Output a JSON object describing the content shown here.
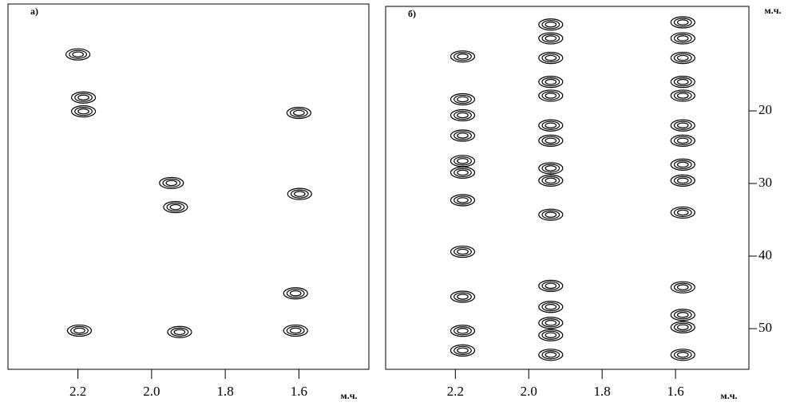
{
  "chart_data": [
    {
      "type": "contour",
      "panel_label": "а)",
      "xlabel": "м.ч.",
      "color": "#000000",
      "xlim": [
        2.39,
        1.41
      ],
      "ylim": [
        5.6,
        55.6
      ],
      "xticks": [
        2.2,
        {
          "value": 2.0,
          "label": "2.0"
        },
        1.8,
        1.6
      ],
      "x": [
        2.2,
        2.185,
        2.185,
        1.6,
        1.946,
        1.935,
        1.598,
        1.609,
        2.196,
        1.924,
        1.609
      ],
      "y": [
        12.5,
        18.4,
        20.3,
        20.5,
        30.1,
        33.4,
        31.6,
        45.2,
        50.3,
        50.5,
        50.3
      ]
    },
    {
      "type": "contour",
      "panel_label": "б)",
      "xlabel": "м.ч.",
      "ylabel": "м.ч.",
      "color": "#000000",
      "xlim": [
        2.39,
        1.4
      ],
      "ylim": [
        5.6,
        55.6
      ],
      "xticks": [
        2.2,
        {
          "value": 2.0,
          "label": "2.0"
        },
        1.8,
        1.6
      ],
      "yticks": [
        20,
        30,
        40,
        50
      ],
      "x": [
        2.18,
        2.18,
        2.18,
        2.18,
        2.18,
        2.18,
        2.18,
        2.18,
        2.18,
        2.18,
        2.18,
        1.94,
        1.94,
        1.94,
        1.94,
        1.94,
        1.94,
        1.94,
        1.94,
        1.94,
        1.94,
        1.94,
        1.94,
        1.94,
        1.94,
        1.94,
        1.58,
        1.58,
        1.58,
        1.58,
        1.58,
        1.58,
        1.58,
        1.58,
        1.58,
        1.58,
        1.58,
        1.58,
        1.58,
        1.58
      ],
      "y": [
        12.5,
        18.4,
        20.6,
        23.4,
        26.9,
        28.5,
        32.3,
        39.4,
        45.6,
        50.3,
        53.0,
        8.1,
        10.0,
        12.7,
        16.0,
        17.9,
        22.0,
        24.1,
        27.9,
        29.6,
        34.3,
        44.1,
        47.0,
        49.2,
        50.9,
        53.6,
        7.8,
        10.0,
        12.7,
        16.0,
        17.9,
        22.0,
        24.1,
        27.4,
        29.6,
        34.0,
        44.3,
        48.1,
        49.8,
        53.6
      ]
    }
  ]
}
